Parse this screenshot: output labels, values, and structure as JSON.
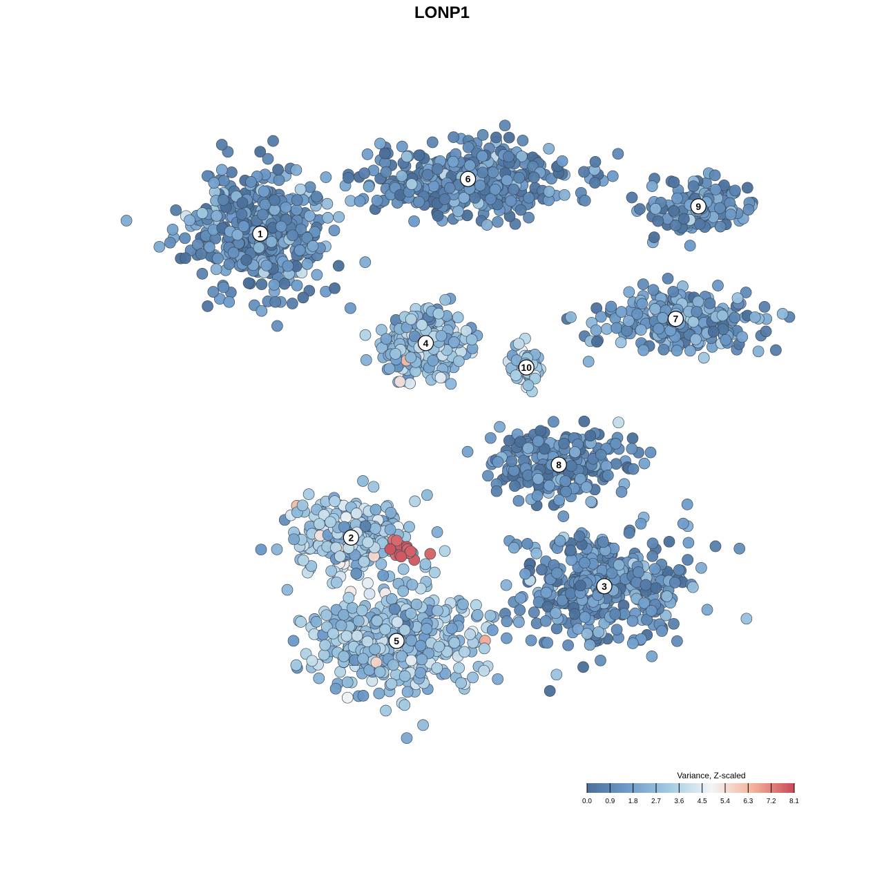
{
  "chart_data": {
    "type": "scatter",
    "title": "LONP1",
    "xlabel": "",
    "ylabel": "",
    "grid": false,
    "legend_placement": "bottom-right",
    "color_scale": {
      "title": "Variance, Z-scaled",
      "min": 0.0,
      "max": 8.1,
      "ticks": [
        "0.0",
        "0.9",
        "1.8",
        "2.7",
        "3.6",
        "4.5",
        "5.4",
        "6.3",
        "7.2",
        "8.1"
      ],
      "colors": [
        "#4a6f9a",
        "#6e9ccb",
        "#a4cbe2",
        "#f3f5f7",
        "#f4b29a",
        "#c94a58"
      ]
    },
    "clusters": [
      {
        "label": "1",
        "x": -5.6,
        "y": 6.4,
        "typical_value": 1.2
      },
      {
        "label": "2",
        "x": -2.8,
        "y": -3.6,
        "typical_value": 2.9
      },
      {
        "label": "3",
        "x": 5.0,
        "y": -5.2,
        "typical_value": 1.3
      },
      {
        "label": "4",
        "x": -0.5,
        "y": 2.8,
        "typical_value": 2.6
      },
      {
        "label": "5",
        "x": -1.4,
        "y": -7.0,
        "typical_value": 2.8
      },
      {
        "label": "6",
        "x": 0.8,
        "y": 8.2,
        "typical_value": 1.1
      },
      {
        "label": "7",
        "x": 7.2,
        "y": 3.6,
        "typical_value": 1.5
      },
      {
        "label": "8",
        "x": 3.6,
        "y": -1.2,
        "typical_value": 0.9
      },
      {
        "label": "9",
        "x": 7.9,
        "y": 7.3,
        "typical_value": 1.3
      },
      {
        "label": "10",
        "x": 2.6,
        "y": 2.0,
        "typical_value": 2.9
      }
    ],
    "high_value_group": {
      "x": -1.0,
      "y": -4.0,
      "value": 7.8
    }
  }
}
